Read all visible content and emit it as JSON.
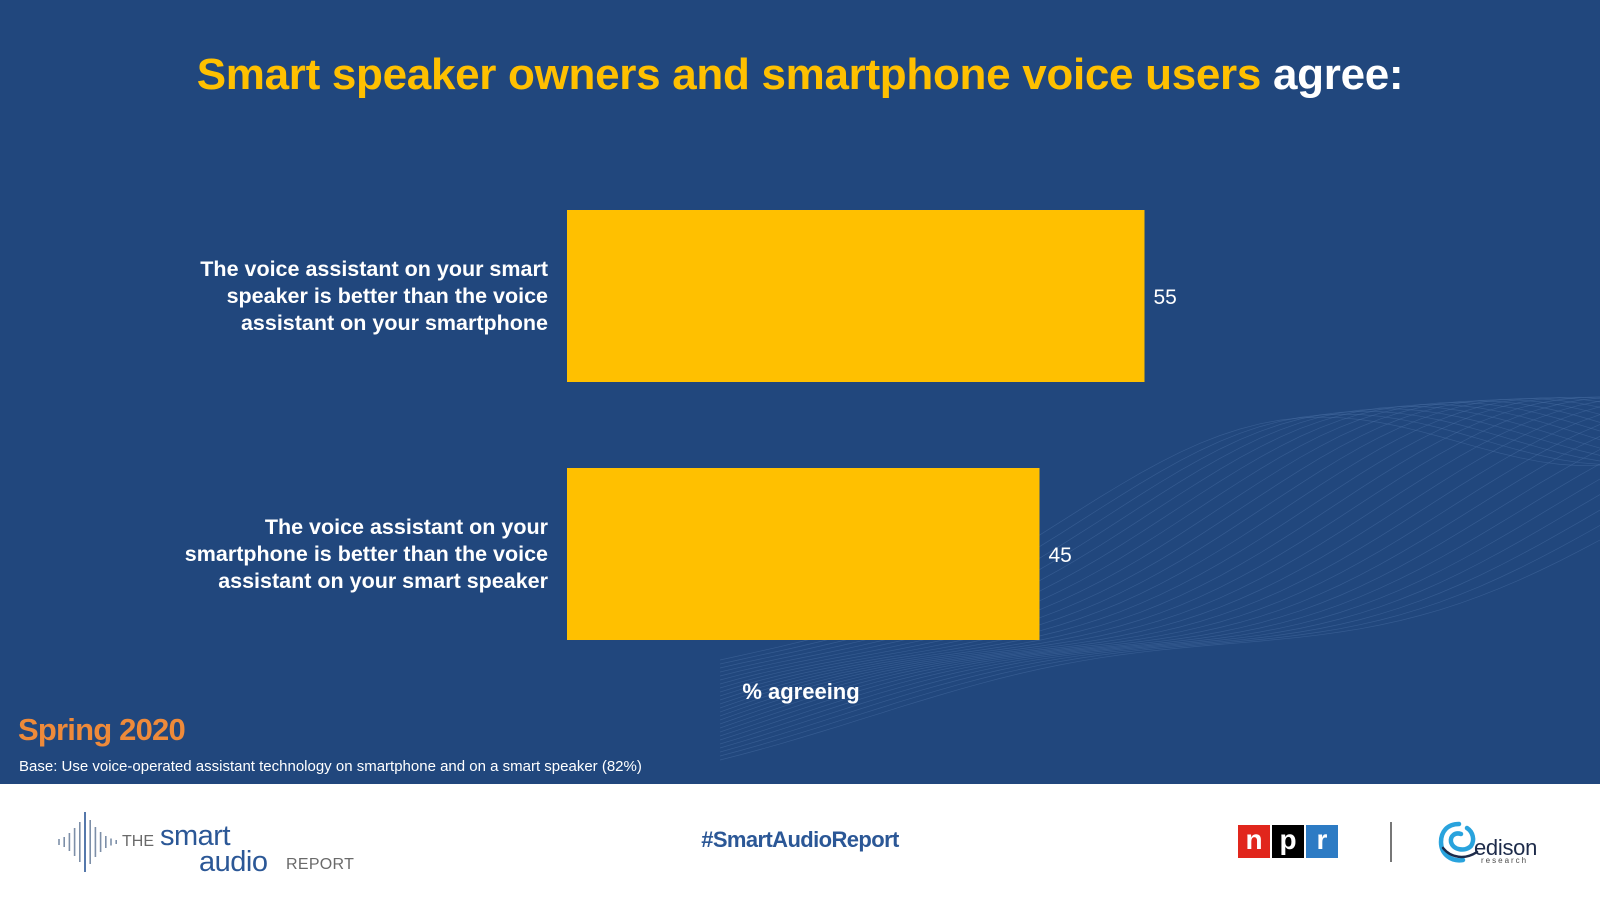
{
  "title": {
    "highlight": "Smart speaker owners and smartphone voice users",
    "tail": "agree:"
  },
  "chart_data": {
    "type": "bar",
    "orientation": "horizontal",
    "categories": [
      [
        "The voice assistant on your smart",
        "speaker is better than the voice",
        "assistant on your smartphone"
      ],
      [
        "The voice assistant on your",
        "smartphone is better than the voice",
        "assistant on your smart speaker"
      ]
    ],
    "values": [
      55,
      45
    ],
    "xlabel": "% agreeing",
    "xlim": [
      0,
      100
    ],
    "grid": false,
    "data_labels": true,
    "bar_color": "#ffc000"
  },
  "footnotes": {
    "season": "Spring 2020",
    "base": "Base: Use voice-operated assistant technology on smartphone and on a smart speaker (82%)"
  },
  "footer": {
    "logo_left": {
      "the": "THE",
      "smart": "smart",
      "audio": "audio",
      "report": "REPORT"
    },
    "hashtag": "#SmartAudioReport",
    "npr": [
      "n",
      "p",
      "r"
    ],
    "edison": {
      "word": "edison",
      "sub": "research"
    }
  },
  "colors": {
    "background": "#21477d",
    "accent": "#ffc000",
    "season": "#ee8a3a",
    "brand_blue": "#2b5796"
  }
}
